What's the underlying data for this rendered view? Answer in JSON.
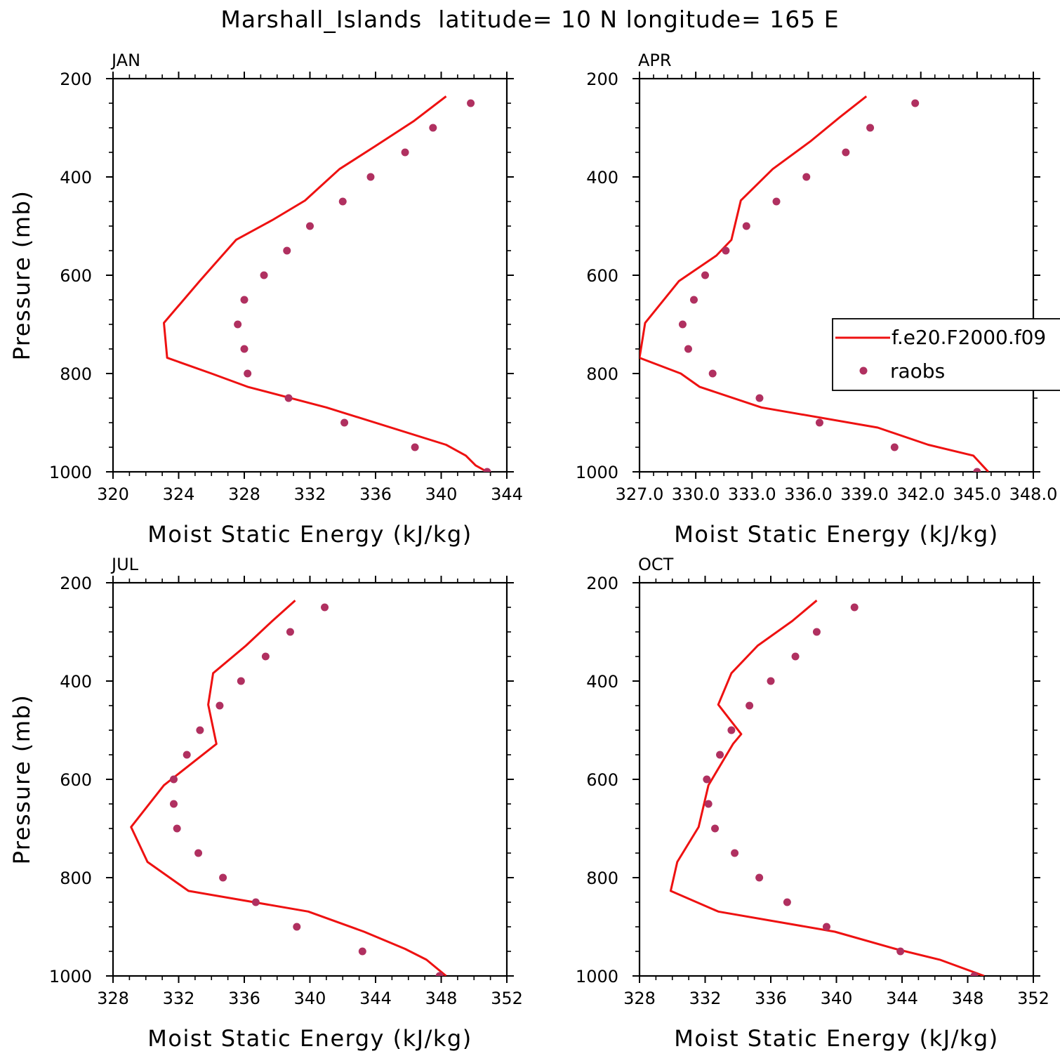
{
  "title": "Marshall_Islands  latitude= 10 N longitude= 165 E",
  "colors": {
    "model": "#ee1111",
    "obs": "#b03060",
    "axis": "#000000"
  },
  "legend": {
    "model_label": "f.e20.F2000.f09",
    "obs_label": "raobs",
    "placement": "right-middle of APR panel"
  },
  "chart_data": [
    {
      "type": "line",
      "panel": "JAN",
      "xlabel": "Moist Static Energy (kJ/kg)",
      "ylabel": "Pressure (mb)",
      "xlim": [
        320,
        344
      ],
      "ylim": [
        1000,
        200
      ],
      "xticks": [
        320,
        324,
        328,
        332,
        336,
        340,
        344
      ],
      "xtick_labels": [
        "320",
        "324",
        "328",
        "332",
        "336",
        "340",
        "344"
      ],
      "yticks": [
        200,
        400,
        600,
        800,
        1000
      ],
      "yaxis": "inverted",
      "series": [
        {
          "name": "f.e20.F2000.f09",
          "kind": "line",
          "x": [
            340.3,
            338.3,
            336.0,
            333.8,
            331.7,
            329.7,
            327.5,
            325.3,
            323.1,
            323.3,
            326.0,
            328.2,
            333.0,
            340.3,
            341.5,
            342.1,
            342.8
          ],
          "y": [
            236,
            287,
            337,
            384,
            448,
            488,
            528,
            611,
            697,
            768,
            800,
            827,
            869,
            945,
            967,
            987,
            1000
          ]
        },
        {
          "name": "raobs",
          "kind": "points",
          "x": [
            341.8,
            339.5,
            337.8,
            335.7,
            334.0,
            332.0,
            330.6,
            329.2,
            328.0,
            327.6,
            328.0,
            328.2,
            330.7,
            334.1,
            338.4,
            342.8
          ],
          "y": [
            250,
            300,
            350,
            400,
            450,
            500,
            550,
            600,
            650,
            700,
            750,
            800,
            850,
            900,
            950,
            1000
          ]
        }
      ]
    },
    {
      "type": "line",
      "panel": "APR",
      "xlabel": "Moist Static Energy (kJ/kg)",
      "ylabel": "",
      "xlim": [
        327.0,
        348.0
      ],
      "ylim": [
        1000,
        200
      ],
      "xticks": [
        327.0,
        330.0,
        333.0,
        336.0,
        339.0,
        342.0,
        345.0,
        348.0
      ],
      "xtick_labels": [
        "327.0",
        "330.0",
        "333.0",
        "336.0",
        "339.0",
        "342.0",
        "345.0",
        "348.0"
      ],
      "yticks": [
        200,
        400,
        600,
        800,
        1000
      ],
      "yaxis": "inverted",
      "series": [
        {
          "name": "f.e20.F2000.f09",
          "kind": "line",
          "x": [
            339.1,
            337.7,
            336.1,
            334.1,
            332.4,
            331.9,
            331.1,
            329.1,
            327.3,
            327.0,
            329.2,
            330.2,
            333.5,
            339.7,
            342.4,
            344.8,
            345.6
          ],
          "y": [
            236,
            278,
            328,
            384,
            448,
            528,
            560,
            612,
            697,
            768,
            800,
            827,
            869,
            910,
            945,
            967,
            1000
          ]
        },
        {
          "name": "raobs",
          "kind": "points",
          "x": [
            341.7,
            339.3,
            338.0,
            335.9,
            334.3,
            332.7,
            331.6,
            330.5,
            329.9,
            329.3,
            329.6,
            330.9,
            333.4,
            336.6,
            340.6,
            345.0
          ],
          "y": [
            250,
            300,
            350,
            400,
            450,
            500,
            550,
            600,
            650,
            700,
            750,
            800,
            850,
            900,
            950,
            1000
          ]
        }
      ]
    },
    {
      "type": "line",
      "panel": "JUL",
      "xlabel": "Moist Static Energy (kJ/kg)",
      "ylabel": "Pressure (mb)",
      "xlim": [
        328,
        352
      ],
      "ylim": [
        1000,
        200
      ],
      "xticks": [
        328,
        332,
        336,
        340,
        344,
        348,
        352
      ],
      "xtick_labels": [
        "328",
        "332",
        "336",
        "340",
        "344",
        "348",
        "352"
      ],
      "yticks": [
        200,
        400,
        600,
        800,
        1000
      ],
      "yaxis": "inverted",
      "series": [
        {
          "name": "f.e20.F2000.f09",
          "kind": "line",
          "x": [
            339.1,
            337.7,
            336.1,
            334.1,
            333.8,
            334.3,
            331.1,
            329.1,
            330.1,
            332.6,
            339.9,
            343.3,
            345.8,
            347.1,
            348.3
          ],
          "y": [
            236,
            278,
            328,
            384,
            448,
            528,
            612,
            697,
            768,
            827,
            869,
            910,
            945,
            967,
            1000
          ]
        },
        {
          "name": "raobs",
          "kind": "points",
          "x": [
            340.9,
            338.8,
            337.3,
            335.8,
            334.5,
            333.3,
            332.5,
            331.7,
            331.7,
            331.9,
            333.2,
            334.7,
            336.7,
            339.2,
            343.2,
            347.9
          ],
          "y": [
            250,
            300,
            350,
            400,
            450,
            500,
            550,
            600,
            650,
            700,
            750,
            800,
            850,
            900,
            950,
            1000
          ]
        }
      ]
    },
    {
      "type": "line",
      "panel": "OCT",
      "xlabel": "Moist Static Energy (kJ/kg)",
      "ylabel": "",
      "xlim": [
        328,
        352
      ],
      "ylim": [
        1000,
        200
      ],
      "xticks": [
        328,
        332,
        336,
        340,
        344,
        348,
        352
      ],
      "xtick_labels": [
        "328",
        "332",
        "336",
        "340",
        "344",
        "348",
        "352"
      ],
      "yticks": [
        200,
        400,
        600,
        800,
        1000
      ],
      "yaxis": "inverted",
      "series": [
        {
          "name": "f.e20.F2000.f09",
          "kind": "line",
          "x": [
            338.8,
            337.3,
            335.2,
            333.6,
            332.8,
            334.2,
            333.7,
            332.2,
            331.6,
            330.3,
            329.9,
            332.8,
            339.9,
            343.6,
            346.3,
            349.0
          ],
          "y": [
            236,
            278,
            328,
            384,
            448,
            508,
            528,
            612,
            697,
            768,
            827,
            869,
            910,
            945,
            967,
            1000
          ]
        },
        {
          "name": "raobs",
          "kind": "points",
          "x": [
            341.1,
            338.8,
            337.5,
            336.0,
            334.7,
            333.6,
            332.9,
            332.1,
            332.2,
            332.6,
            333.8,
            335.3,
            337.0,
            339.4,
            343.9,
            348.4
          ],
          "y": [
            250,
            300,
            350,
            400,
            450,
            500,
            550,
            600,
            650,
            700,
            750,
            800,
            850,
            900,
            950,
            1000
          ]
        }
      ]
    }
  ]
}
